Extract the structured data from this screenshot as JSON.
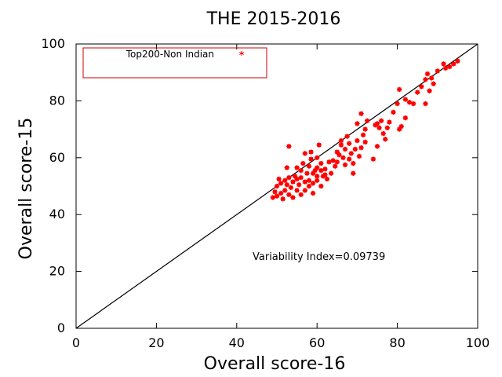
{
  "chart_data": {
    "type": "scatter",
    "title": "THE 2015-2016",
    "xlabel": "Overall score-16",
    "ylabel": "Overall score-15",
    "xlim": [
      0,
      100
    ],
    "ylim": [
      0,
      100
    ],
    "xticks": [
      "0",
      "20",
      "40",
      "60",
      "80",
      "100"
    ],
    "yticks": [
      "0",
      "20",
      "40",
      "60",
      "80",
      "100"
    ],
    "grid": false,
    "legend_position": "top-left",
    "annotation": "Variability Index=0.09739",
    "reference_line": {
      "from": [
        0,
        0
      ],
      "to": [
        100,
        100
      ],
      "color": "#000000"
    },
    "series": [
      {
        "name": "Top200-Non Indian",
        "color": "#ff0000",
        "points": [
          [
            49.0,
            46.0
          ],
          [
            49.5,
            48.0
          ],
          [
            50.0,
            46.5
          ],
          [
            50.0,
            50.0
          ],
          [
            50.5,
            52.5
          ],
          [
            51.0,
            47.5
          ],
          [
            51.0,
            51.0
          ],
          [
            51.5,
            45.5
          ],
          [
            52.0,
            48.5
          ],
          [
            52.0,
            52.0
          ],
          [
            52.5,
            50.5
          ],
          [
            52.5,
            56.5
          ],
          [
            53.0,
            47.0
          ],
          [
            53.0,
            53.0
          ],
          [
            53.0,
            64.0
          ],
          [
            53.5,
            49.5
          ],
          [
            54.0,
            51.5
          ],
          [
            54.0,
            46.0
          ],
          [
            54.5,
            53.5
          ],
          [
            55.0,
            48.5
          ],
          [
            55.0,
            52.5
          ],
          [
            55.0,
            56.5
          ],
          [
            55.5,
            50.5
          ],
          [
            56.0,
            47.0
          ],
          [
            56.0,
            53.0
          ],
          [
            56.0,
            55.5
          ],
          [
            56.5,
            58.0
          ],
          [
            57.0,
            51.5
          ],
          [
            57.0,
            48.5
          ],
          [
            57.0,
            61.5
          ],
          [
            57.5,
            54.5
          ],
          [
            58.0,
            57.0
          ],
          [
            58.0,
            50.0
          ],
          [
            58.0,
            52.0
          ],
          [
            58.5,
            59.5
          ],
          [
            58.5,
            62.0
          ],
          [
            59.0,
            54.5
          ],
          [
            59.0,
            47.5
          ],
          [
            59.0,
            51.0
          ],
          [
            59.5,
            55.5
          ],
          [
            60.0,
            56.5
          ],
          [
            60.0,
            53.5
          ],
          [
            60.0,
            52.0
          ],
          [
            60.0,
            60.0
          ],
          [
            60.5,
            64.5
          ],
          [
            61.0,
            55.5
          ],
          [
            61.0,
            50.0
          ],
          [
            61.0,
            58.0
          ],
          [
            61.5,
            53.5
          ],
          [
            62.0,
            54.0
          ],
          [
            62.0,
            56.0
          ],
          [
            62.5,
            52.5
          ],
          [
            63.0,
            58.5
          ],
          [
            63.5,
            54.5
          ],
          [
            64.0,
            59.0
          ],
          [
            64.5,
            57.0
          ],
          [
            65.0,
            62.0
          ],
          [
            65.0,
            58.5
          ],
          [
            65.5,
            61.0
          ],
          [
            66.0,
            64.5
          ],
          [
            66.0,
            66.0
          ],
          [
            66.5,
            60.0
          ],
          [
            67.0,
            63.0
          ],
          [
            67.0,
            57.5
          ],
          [
            67.5,
            67.5
          ],
          [
            68.0,
            59.5
          ],
          [
            68.0,
            65.0
          ],
          [
            68.5,
            61.5
          ],
          [
            69.0,
            54.5
          ],
          [
            69.0,
            58.0
          ],
          [
            69.5,
            63.0
          ],
          [
            70.0,
            72.0
          ],
          [
            70.0,
            66.0
          ],
          [
            70.5,
            60.5
          ],
          [
            71.0,
            75.5
          ],
          [
            71.0,
            63.5
          ],
          [
            71.5,
            68.0
          ],
          [
            72.0,
            70.0
          ],
          [
            72.0,
            65.5
          ],
          [
            72.5,
            73.0
          ],
          [
            74.0,
            59.5
          ],
          [
            74.5,
            71.5
          ],
          [
            75.0,
            64.0
          ],
          [
            75.0,
            72.0
          ],
          [
            75.5,
            70.5
          ],
          [
            76.0,
            73.0
          ],
          [
            76.5,
            68.5
          ],
          [
            77.0,
            66.5
          ],
          [
            77.5,
            70.5
          ],
          [
            78.0,
            72.5
          ],
          [
            79.0,
            76.0
          ],
          [
            80.0,
            79.0
          ],
          [
            80.5,
            70.0
          ],
          [
            80.5,
            84.0
          ],
          [
            81.0,
            71.0
          ],
          [
            82.0,
            74.0
          ],
          [
            82.0,
            80.5
          ],
          [
            83.0,
            79.5
          ],
          [
            84.0,
            79.0
          ],
          [
            85.0,
            83.0
          ],
          [
            86.0,
            85.0
          ],
          [
            87.0,
            87.5
          ],
          [
            87.0,
            79.0
          ],
          [
            87.5,
            89.5
          ],
          [
            88.0,
            83.5
          ],
          [
            88.5,
            88.0
          ],
          [
            89.0,
            86.0
          ],
          [
            90.0,
            90.5
          ],
          [
            91.5,
            93.0
          ],
          [
            92.0,
            91.5
          ],
          [
            93.0,
            92.0
          ],
          [
            94.0,
            93.0
          ],
          [
            95.0,
            94.0
          ]
        ]
      }
    ]
  }
}
